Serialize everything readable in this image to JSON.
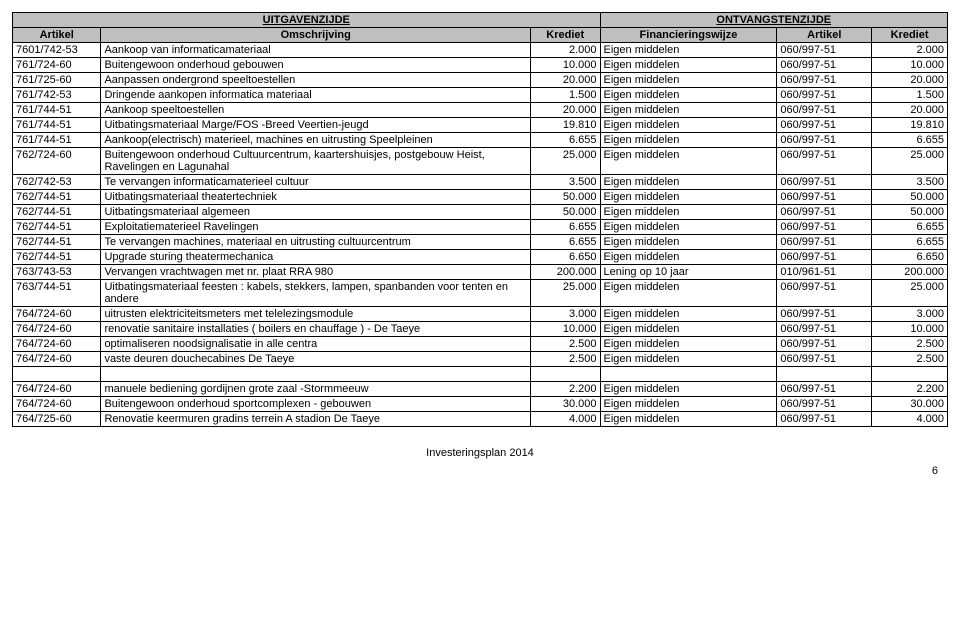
{
  "header": {
    "left_title": "UITGAVENZIJDE",
    "right_title": "ONTVANGSTENZIJDE",
    "cols": {
      "artikel_l": "Artikel",
      "omschrijving": "Omschrijving",
      "krediet_l": "Krediet",
      "financiering": "Financieringswijze",
      "artikel_r": "Artikel",
      "krediet_r": "Krediet"
    }
  },
  "rows": [
    {
      "a": "7601/742-53",
      "d": "Aankoop van informaticamateriaal",
      "k": "2.000",
      "f": "Eigen middelen",
      "ar": "060/997-51",
      "kr": "2.000"
    },
    {
      "a": "761/724-60",
      "d": "Buitengewoon onderhoud gebouwen",
      "k": "10.000",
      "f": "Eigen middelen",
      "ar": "060/997-51",
      "kr": "10.000"
    },
    {
      "a": "761/725-60",
      "d": "Aanpassen ondergrond speeltoestellen",
      "k": "20.000",
      "f": "Eigen middelen",
      "ar": "060/997-51",
      "kr": "20.000"
    },
    {
      "a": "761/742-53",
      "d": "Dringende aankopen informatica materiaal",
      "k": "1.500",
      "f": "Eigen middelen",
      "ar": "060/997-51",
      "kr": "1.500"
    },
    {
      "a": "761/744-51",
      "d": "Aankoop speeltoestellen",
      "k": "20.000",
      "f": "Eigen middelen",
      "ar": "060/997-51",
      "kr": "20.000"
    },
    {
      "a": "761/744-51",
      "d": "Uitbatingsmateriaal Marge/FOS -Breed Veertien-jeugd",
      "k": "19.810",
      "f": "Eigen middelen",
      "ar": "060/997-51",
      "kr": "19.810",
      "wrap": true
    },
    {
      "a": "761/744-51",
      "d": "Aankoop(electrisch) materieel, machines en uitrusting Speelpleinen",
      "k": "6.655",
      "f": "Eigen middelen",
      "ar": "060/997-51",
      "kr": "6.655",
      "wrap": true
    },
    {
      "a": "762/724-60",
      "d": "Buitengewoon onderhoud Cultuurcentrum, kaartershuisjes, postgebouw Heist, Ravelingen en Lagunahal",
      "k": "25.000",
      "f": "Eigen middelen",
      "ar": "060/997-51",
      "kr": "25.000",
      "wrap": true
    },
    {
      "a": "762/742-53",
      "d": "Te vervangen informaticamaterieel cultuur",
      "k": "3.500",
      "f": "Eigen middelen",
      "ar": "060/997-51",
      "kr": "3.500"
    },
    {
      "a": "762/744-51",
      "d": "Uitbatingsmateriaal theatertechniek",
      "k": "50.000",
      "f": "Eigen middelen",
      "ar": "060/997-51",
      "kr": "50.000"
    },
    {
      "a": "762/744-51",
      "d": "Uitbatingsmateriaal algemeen",
      "k": "50.000",
      "f": "Eigen middelen",
      "ar": "060/997-51",
      "kr": "50.000"
    },
    {
      "a": "762/744-51",
      "d": "Exploitatiematerieel Ravelingen",
      "k": "6.655",
      "f": "Eigen middelen",
      "ar": "060/997-51",
      "kr": "6.655"
    },
    {
      "a": "762/744-51",
      "d": "Te vervangen machines, materiaal en uitrusting cultuurcentrum",
      "k": "6.655",
      "f": "Eigen middelen",
      "ar": "060/997-51",
      "kr": "6.655",
      "wrap": true
    },
    {
      "a": "762/744-51",
      "d": "Upgrade sturing theatermechanica",
      "k": "6.650",
      "f": "Eigen middelen",
      "ar": "060/997-51",
      "kr": "6.650"
    },
    {
      "a": "763/743-53",
      "d": "Vervangen vrachtwagen met nr. plaat RRA 980",
      "k": "200.000",
      "f": "Lening op 10 jaar",
      "ar": "010/961-51",
      "kr": "200.000"
    },
    {
      "a": "763/744-51",
      "d": "Uitbatingsmateriaal feesten : kabels, stekkers, lampen, spanbanden voor tenten en andere",
      "k": "25.000",
      "f": "Eigen middelen",
      "ar": "060/997-51",
      "kr": "25.000",
      "wrap": true
    },
    {
      "a": "764/724-60",
      "d": "uitrusten elektriciteitsmeters met telelezingsmodule",
      "k": "3.000",
      "f": "Eigen middelen",
      "ar": "060/997-51",
      "kr": "3.000"
    },
    {
      "a": "764/724-60",
      "d": "renovatie sanitaire installaties ( boilers en chauffage ) - De Taeye",
      "k": "10.000",
      "f": "Eigen middelen",
      "ar": "060/997-51",
      "kr": "10.000",
      "wrap": true
    },
    {
      "a": "764/724-60",
      "d": "optimaliseren noodsignalisatie in alle centra",
      "k": "2.500",
      "f": "Eigen middelen",
      "ar": "060/997-51",
      "kr": "2.500"
    },
    {
      "a": "764/724-60",
      "d": "vaste deuren douchecabines De Taeye",
      "k": "2.500",
      "f": "Eigen middelen",
      "ar": "060/997-51",
      "kr": "2.500"
    },
    {
      "spacer": true
    },
    {
      "a": "764/724-60",
      "d": "manuele bediening gordijnen grote zaal -Stormmeeuw",
      "k": "2.200",
      "f": "Eigen middelen",
      "ar": "060/997-51",
      "kr": "2.200"
    },
    {
      "a": "764/724-60",
      "d": "Buitengewoon onderhoud sportcomplexen - gebouwen",
      "k": "30.000",
      "f": "Eigen middelen",
      "ar": "060/997-51",
      "kr": "30.000",
      "wrap": true
    },
    {
      "a": "764/725-60",
      "d": "Renovatie keermuren gradins terrein A stadion De Taeye",
      "k": "4.000",
      "f": "Eigen middelen",
      "ar": "060/997-51",
      "kr": "4.000",
      "wrap": true
    }
  ],
  "footer": "Investeringsplan 2014",
  "page": "6"
}
